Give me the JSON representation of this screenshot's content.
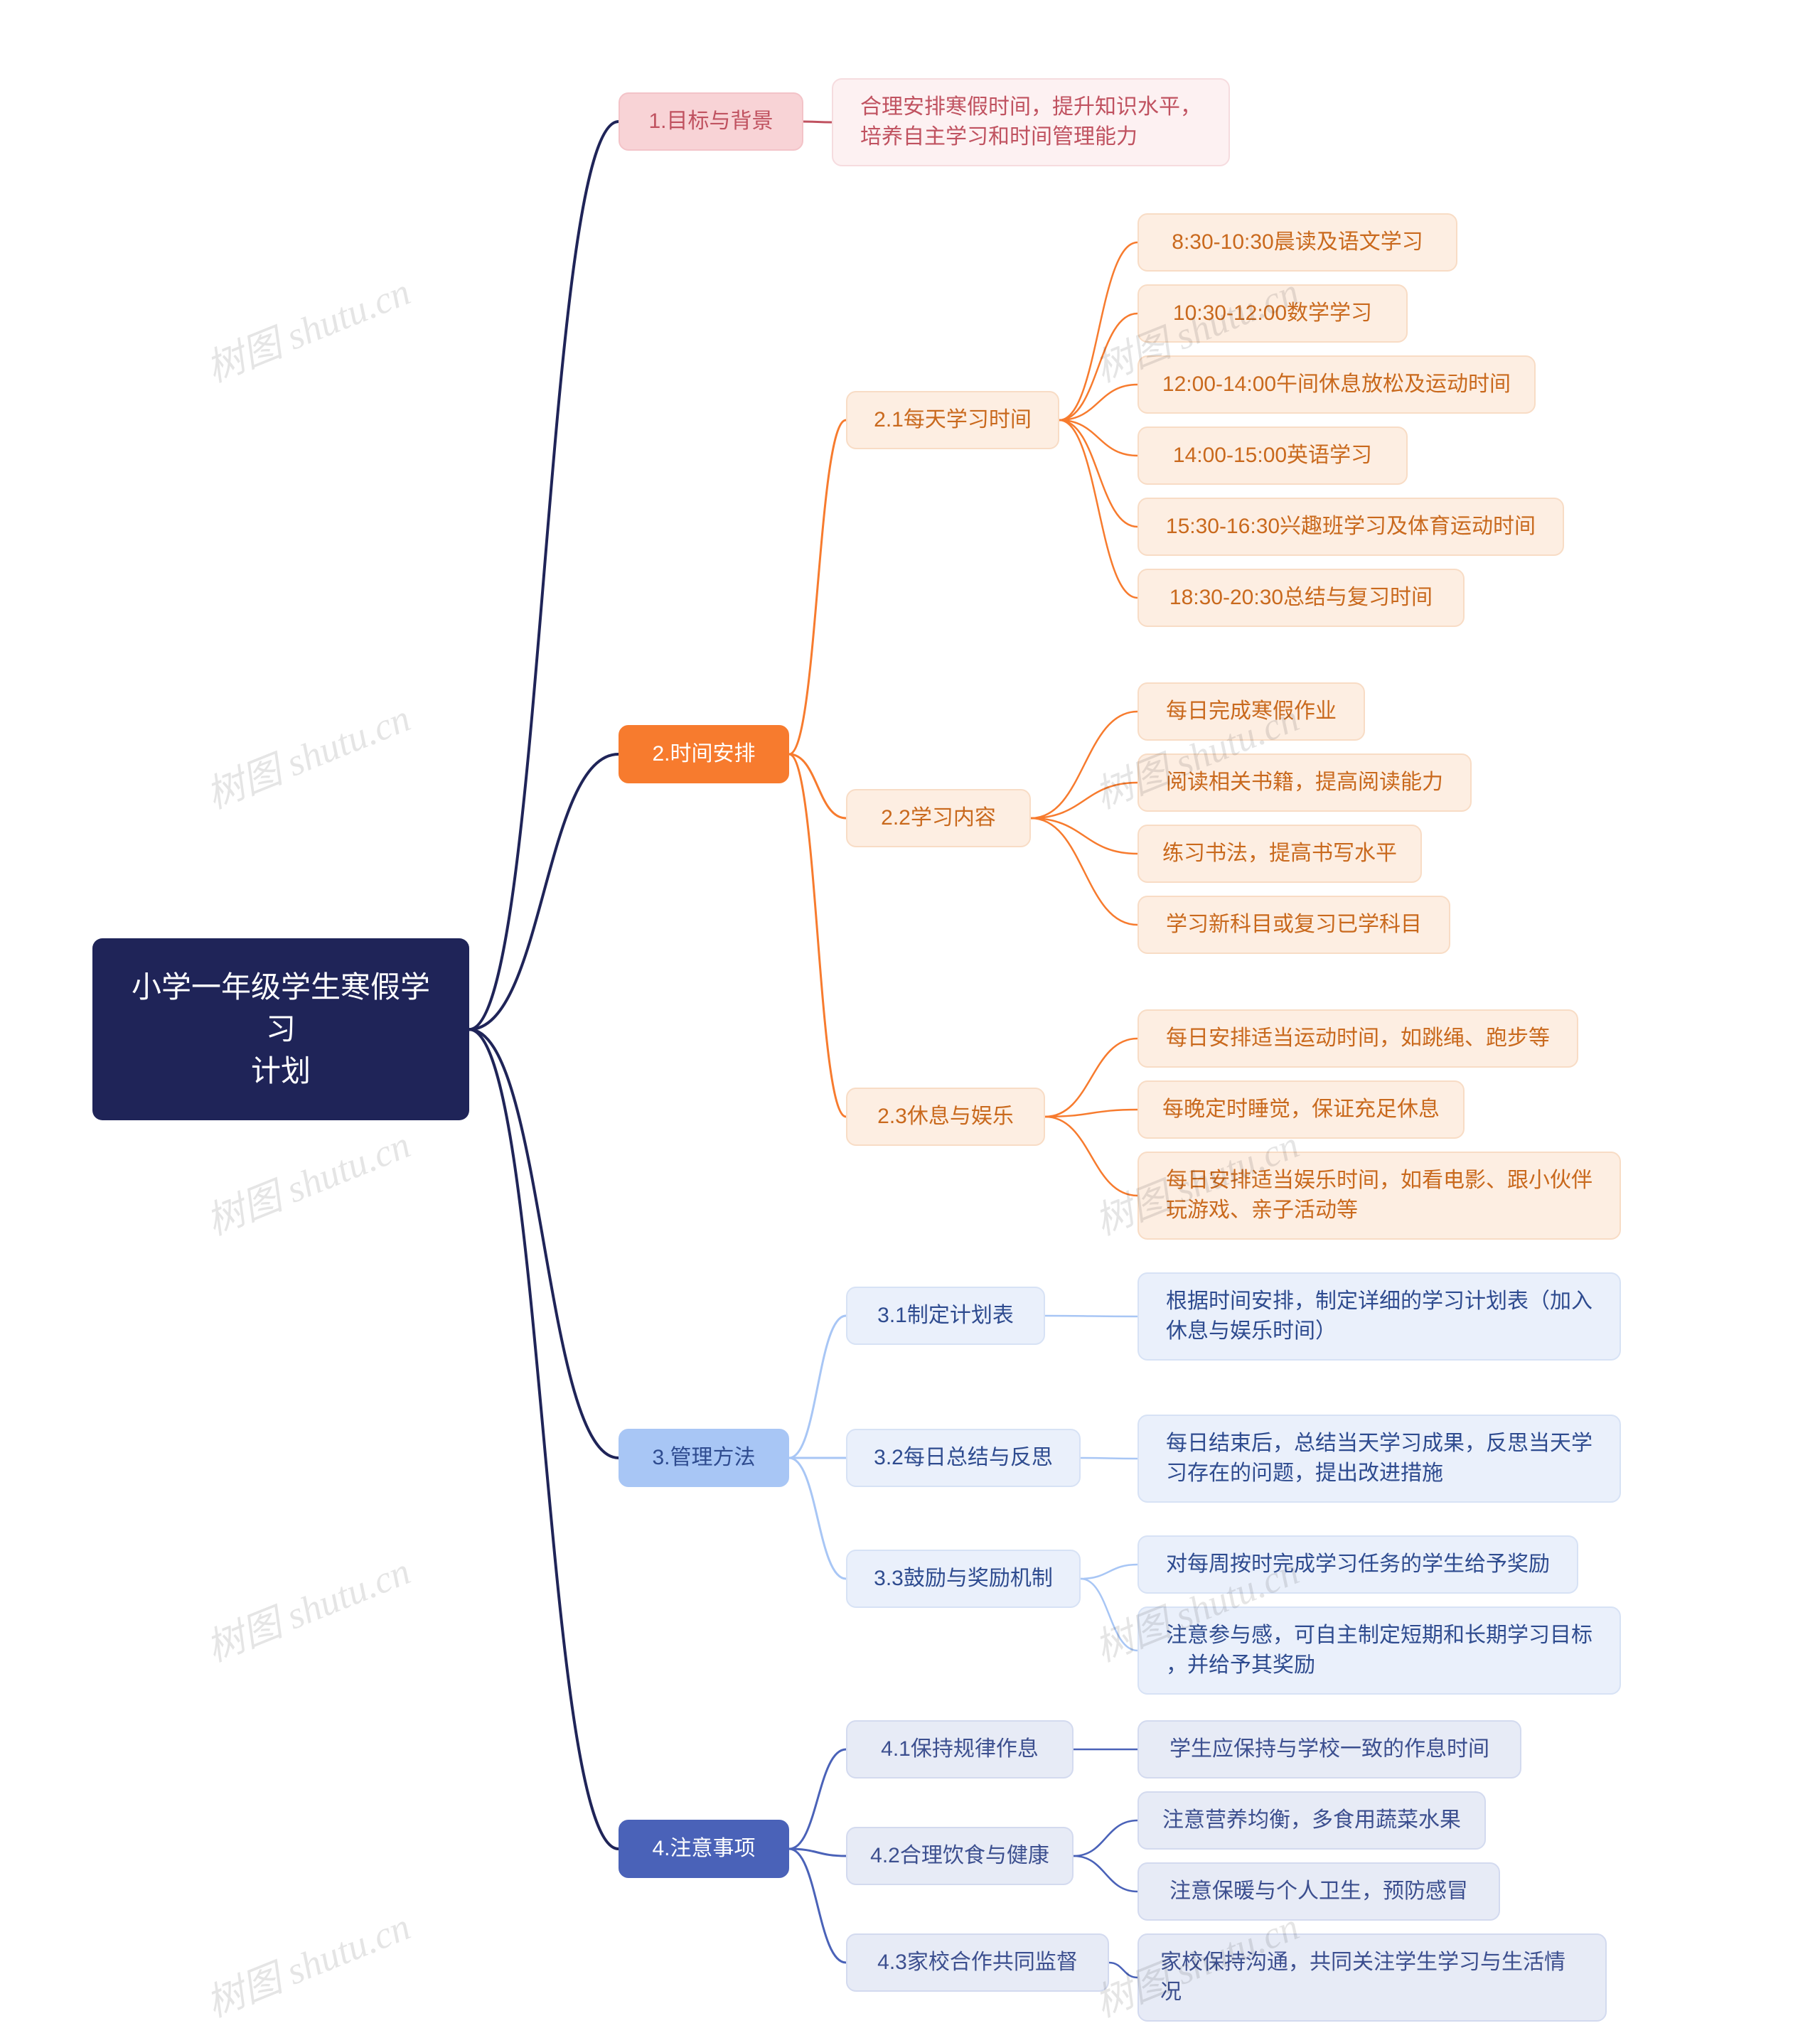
{
  "colors": {
    "root_bg": "#1f2458",
    "root_text": "#ffffff",
    "pink_bg": "#f8d3d6",
    "pink_text": "#c05260",
    "pink_light_bg": "#fdf1f2",
    "orange_bg": "#f77b2e",
    "orange_text_dark": "#c9691d",
    "orange_light_bg": "#fdeee2",
    "lblue_bg": "#a8c6f5",
    "lblue_text": "#2e4b8f",
    "lblue_light_bg": "#eaf0fb",
    "indigo_bg": "#4a62b8",
    "indigo_text": "#3c4f8f",
    "indigo_light_bg": "#e7ebf6",
    "connector_root": "#1f2458",
    "watermark": "rgba(0,0,0,0.10)"
  },
  "fonts": {
    "root_size": 42,
    "node_size": 30
  },
  "root": {
    "label": "小学一年级学生寒假学习\n计划"
  },
  "branches": [
    {
      "id": "b1",
      "label": "1.目标与背景",
      "color": "pink",
      "children": [
        {
          "id": "b1c1",
          "label": "合理安排寒假时间，提升知识水平，\n培养自主学习和时间管理能力",
          "leaves": []
        }
      ]
    },
    {
      "id": "b2",
      "label": "2.时间安排",
      "color": "orange",
      "children": [
        {
          "id": "b2c1",
          "label": "2.1每天学习时间",
          "leaves": [
            "8:30-10:30晨读及语文学习",
            "10:30-12:00数学学习",
            "12:00-14:00午间休息放松及运动时间",
            "14:00-15:00英语学习",
            "15:30-16:30兴趣班学习及体育运动时间",
            "18:30-20:30总结与复习时间"
          ]
        },
        {
          "id": "b2c2",
          "label": "2.2学习内容",
          "leaves": [
            "每日完成寒假作业",
            "阅读相关书籍，提高阅读能力",
            "练习书法，提高书写水平",
            "学习新科目或复习已学科目"
          ]
        },
        {
          "id": "b2c3",
          "label": "2.3休息与娱乐",
          "leaves": [
            "每日安排适当运动时间，如跳绳、跑步等",
            "每晚定时睡觉，保证充足休息",
            "每日安排适当娱乐时间，如看电影、跟小伙伴\n玩游戏、亲子活动等"
          ]
        }
      ]
    },
    {
      "id": "b3",
      "label": "3.管理方法",
      "color": "lblue",
      "children": [
        {
          "id": "b3c1",
          "label": "3.1制定计划表",
          "leaves": [
            "根据时间安排，制定详细的学习计划表（加入\n休息与娱乐时间）"
          ]
        },
        {
          "id": "b3c2",
          "label": "3.2每日总结与反思",
          "leaves": [
            "每日结束后，总结当天学习成果，反思当天学\n习存在的问题，提出改进措施"
          ]
        },
        {
          "id": "b3c3",
          "label": "3.3鼓励与奖励机制",
          "leaves": [
            "对每周按时完成学习任务的学生给予奖励",
            "注意参与感，可自主制定短期和长期学习目标\n，并给予其奖励"
          ]
        }
      ]
    },
    {
      "id": "b4",
      "label": "4.注意事项",
      "color": "indigo",
      "children": [
        {
          "id": "b4c1",
          "label": "4.1保持规律作息",
          "leaves": [
            "学生应保持与学校一致的作息时间"
          ]
        },
        {
          "id": "b4c2",
          "label": "4.2合理饮食与健康",
          "leaves": [
            "注意营养均衡，多食用蔬菜水果",
            "注意保暖与个人卫生，预防感冒"
          ]
        },
        {
          "id": "b4c3",
          "label": "4.3家校合作共同监督",
          "leaves": [
            "家校保持沟通，共同关注学生学习与生活情况"
          ]
        }
      ]
    }
  ],
  "watermarks": [
    "树图 shutu.cn"
  ]
}
